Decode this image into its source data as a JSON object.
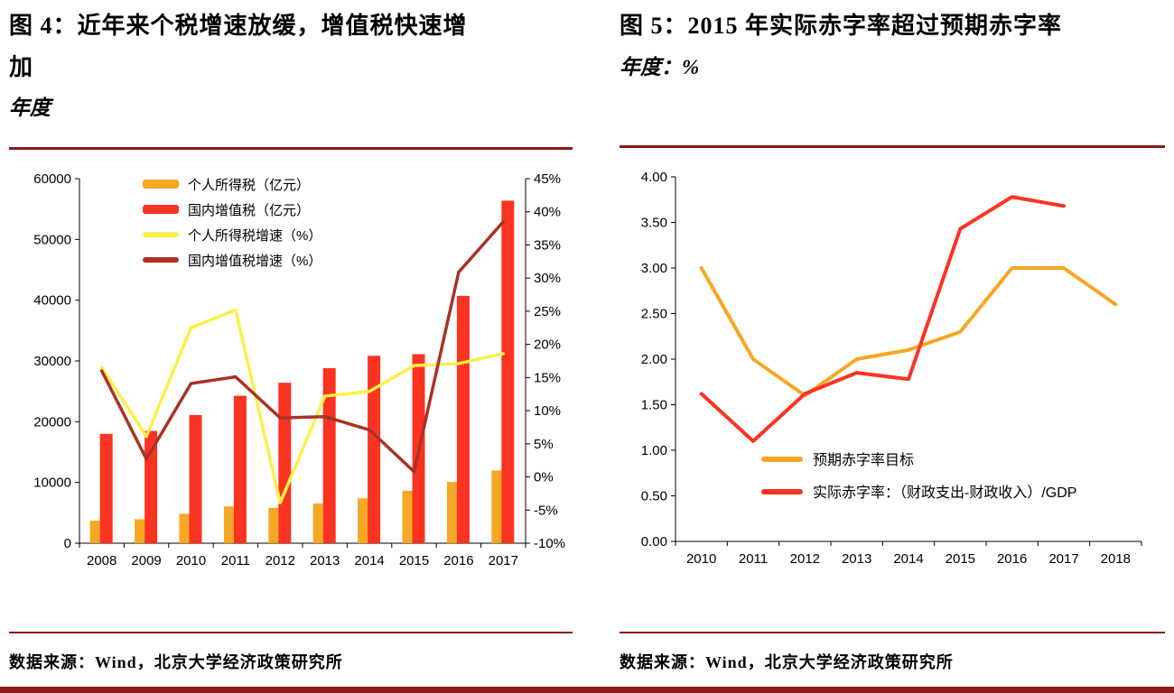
{
  "colors": {
    "rule": "#8B1A1A",
    "orange": "#F6A724",
    "red": "#FB3321",
    "yellow": "#FBF049",
    "dark_red": "#A93226",
    "text": "#000000"
  },
  "panels": {
    "figure4": {
      "title_lines": [
        "图 4：近年来个税增速放缓，增值税快速增",
        "加"
      ],
      "subtitle": "年度",
      "source": "数据来源：Wind，北京大学经济政策研究所"
    },
    "figure5": {
      "title_lines": [
        "图 5：2015 年实际赤字率超过预期赤字率"
      ],
      "subtitle": "年度：%",
      "source": "数据来源：Wind，北京大学经济政策研究所"
    }
  },
  "chart_data": [
    {
      "id": "figure4",
      "type": "bar+line",
      "title": "图 4：近年来个税增速放缓，增值税快速增加",
      "subtitle": "年度",
      "grid": false,
      "legend_position": "top-left",
      "categories": [
        "2008",
        "2009",
        "2010",
        "2011",
        "2012",
        "2013",
        "2014",
        "2015",
        "2016",
        "2017"
      ],
      "left_axis": {
        "min": 0,
        "max": 60000,
        "step": 10000
      },
      "right_axis": {
        "min": -10,
        "max": 45,
        "step": 5,
        "suffix": "%"
      },
      "series": [
        {
          "name": "个人所得税（亿元）",
          "type": "bar",
          "axis": "left",
          "color": "#F6A724",
          "values": [
            3722,
            3949,
            4837,
            6054,
            5820,
            6531,
            7377,
            8618,
            10089,
            11966
          ]
        },
        {
          "name": "国内增值税（亿元）",
          "type": "bar",
          "axis": "left",
          "color": "#FB3321",
          "values": [
            17997,
            18481,
            21092,
            24267,
            26416,
            28810,
            30850,
            31109,
            40712,
            56378
          ]
        },
        {
          "name": "个人所得税增速（%）",
          "type": "line",
          "axis": "right",
          "color": "#FBF049",
          "values": [
            16.5,
            6.1,
            22.5,
            25.2,
            -3.9,
            12.2,
            12.9,
            16.8,
            17.1,
            18.6
          ]
        },
        {
          "name": "国内增值税增速（%）",
          "type": "line",
          "axis": "right",
          "color": "#A93226",
          "values": [
            16.0,
            2.7,
            14.1,
            15.1,
            8.9,
            9.1,
            7.1,
            0.8,
            30.9,
            38.5
          ]
        }
      ]
    },
    {
      "id": "figure5",
      "type": "line",
      "title": "图 5：2015 年实际赤字率超过预期赤字率",
      "subtitle": "年度：%",
      "grid": false,
      "legend_position": "bottom-left",
      "categories": [
        "2010",
        "2011",
        "2012",
        "2013",
        "2014",
        "2015",
        "2016",
        "2017",
        "2018"
      ],
      "y_axis": {
        "min": 0,
        "max": 4,
        "step": 0.5,
        "decimals": 2
      },
      "series": [
        {
          "name": "预期赤字率目标",
          "type": "line",
          "color": "#F6A724",
          "values": [
            3.0,
            2.0,
            1.6,
            2.0,
            2.1,
            2.3,
            3.0,
            3.0,
            2.6
          ]
        },
        {
          "name": "实际赤字率：（财政支出-财政收入）/GDP",
          "type": "line",
          "color": "#FB3321",
          "values": [
            1.62,
            1.1,
            1.62,
            1.85,
            1.78,
            3.43,
            3.78,
            3.68
          ]
        }
      ]
    }
  ]
}
